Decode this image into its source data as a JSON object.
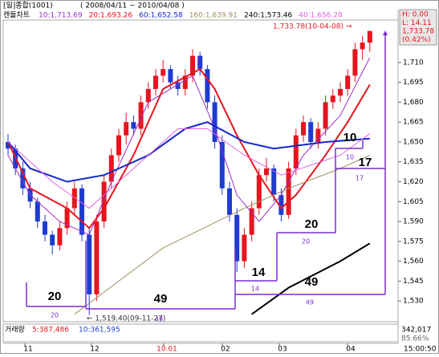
{
  "header": {
    "title": "[일]종합(1001)",
    "period": "( 2008/04/11 ~ 2010/04/08 )"
  },
  "chart_data": {
    "type": "candlestick",
    "chart_label": "캔들차트",
    "candles": [
      [
        1650,
        1656,
        1640,
        1645
      ],
      [
        1645,
        1648,
        1625,
        1630
      ],
      [
        1630,
        1635,
        1610,
        1615
      ],
      [
        1615,
        1620,
        1600,
        1605
      ],
      [
        1605,
        1608,
        1585,
        1590
      ],
      [
        1590,
        1595,
        1575,
        1580
      ],
      [
        1580,
        1583,
        1565,
        1572
      ],
      [
        1572,
        1590,
        1568,
        1585
      ],
      [
        1585,
        1605,
        1580,
        1600
      ],
      [
        1600,
        1620,
        1595,
        1615
      ],
      [
        1615,
        1618,
        1575,
        1580
      ],
      [
        1580,
        1585,
        1519.4,
        1535
      ],
      [
        1535,
        1595,
        1530,
        1590
      ],
      [
        1590,
        1625,
        1585,
        1620
      ],
      [
        1620,
        1645,
        1615,
        1640
      ],
      [
        1640,
        1660,
        1635,
        1655
      ],
      [
        1655,
        1672,
        1648,
        1665
      ],
      [
        1665,
        1670,
        1655,
        1660
      ],
      [
        1660,
        1685,
        1655,
        1680
      ],
      [
        1680,
        1695,
        1675,
        1690
      ],
      [
        1690,
        1705,
        1685,
        1700
      ],
      [
        1700,
        1712,
        1695,
        1705
      ],
      [
        1705,
        1708,
        1690,
        1695
      ],
      [
        1695,
        1700,
        1685,
        1690
      ],
      [
        1690,
        1705,
        1685,
        1700
      ],
      [
        1700,
        1720,
        1695,
        1715
      ],
      [
        1715,
        1718,
        1700,
        1705
      ],
      [
        1705,
        1708,
        1675,
        1680
      ],
      [
        1680,
        1685,
        1645,
        1650
      ],
      [
        1650,
        1655,
        1610,
        1615
      ],
      [
        1615,
        1620,
        1590,
        1595
      ],
      [
        1595,
        1600,
        1552,
        1560
      ],
      [
        1560,
        1585,
        1555,
        1580
      ],
      [
        1580,
        1605,
        1575,
        1600
      ],
      [
        1600,
        1630,
        1595,
        1625
      ],
      [
        1625,
        1638,
        1620,
        1630
      ],
      [
        1630,
        1633,
        1605,
        1610
      ],
      [
        1610,
        1615,
        1590,
        1595
      ],
      [
        1595,
        1635,
        1592,
        1630
      ],
      [
        1630,
        1660,
        1625,
        1655
      ],
      [
        1655,
        1670,
        1650,
        1665
      ],
      [
        1665,
        1668,
        1645,
        1650
      ],
      [
        1650,
        1665,
        1645,
        1660
      ],
      [
        1660,
        1685,
        1655,
        1680
      ],
      [
        1680,
        1690,
        1675,
        1685
      ],
      [
        1685,
        1695,
        1680,
        1690
      ],
      [
        1690,
        1705,
        1685,
        1700
      ],
      [
        1700,
        1725,
        1695,
        1720
      ],
      [
        1720,
        1730,
        1712,
        1725
      ],
      [
        1725,
        1733.78,
        1718,
        1733.78
      ]
    ],
    "up_color": "#e8141e",
    "down_color": "#1e3cd2",
    "series": [
      {
        "name": "10:1,713.69",
        "color": "#9b30c8",
        "width": 1,
        "x": [
          0,
          3,
          7,
          11,
          14,
          19,
          25,
          28,
          31,
          34,
          37,
          40,
          45,
          49
        ],
        "values": [
          1640,
          1610,
          1590,
          1580,
          1620,
          1680,
          1700,
          1660,
          1610,
          1590,
          1610,
          1640,
          1670,
          1713.69
        ]
      },
      {
        "name": "20:1,693.26",
        "color": "#e8141e",
        "width": 2,
        "x": [
          0,
          3,
          8,
          11,
          13,
          17,
          21,
          26,
          28,
          31,
          34,
          37,
          39,
          43,
          46,
          49
        ],
        "values": [
          1650,
          1615,
          1600,
          1585,
          1600,
          1640,
          1690,
          1705,
          1690,
          1655,
          1625,
          1600,
          1610,
          1640,
          1665,
          1693.26
        ]
      },
      {
        "name": "60:1,652.58",
        "color": "#1428c8",
        "width": 2,
        "x": [
          0,
          3,
          8,
          13,
          19,
          24,
          27,
          32,
          36,
          43,
          49
        ],
        "values": [
          1650,
          1630,
          1620,
          1625,
          1640,
          1660,
          1665,
          1650,
          1645,
          1650,
          1652.58
        ]
      },
      {
        "name": "160:1,639.91",
        "color": "#a09060",
        "width": 1,
        "x": [
          9,
          21,
          32,
          38,
          45,
          49
        ],
        "values": [
          1520,
          1570,
          1600,
          1615,
          1630,
          1639.91
        ]
      },
      {
        "name": "240:1,573.46",
        "color": "#000000",
        "width": 2,
        "x": [
          33,
          38,
          45,
          49
        ],
        "values": [
          1520,
          1540,
          1560,
          1573.46
        ]
      },
      {
        "name": "40:1,656.28",
        "color": "#e060e0",
        "width": 1,
        "x": [
          0,
          6,
          11,
          17,
          23,
          27,
          32,
          37,
          45,
          49
        ],
        "values": [
          1650,
          1620,
          1600,
          1630,
          1660,
          1660,
          1640,
          1625,
          1640,
          1656.28
        ]
      }
    ],
    "ylim": [
      1518,
      1742
    ],
    "yticks": [
      {
        "value": 1530,
        "label": "1,530"
      },
      {
        "value": 1545,
        "label": "1,545"
      },
      {
        "value": 1560,
        "label": "1,560"
      },
      {
        "value": 1575,
        "label": "1,575"
      },
      {
        "value": 1590,
        "label": "1,590"
      },
      {
        "value": 1605,
        "label": "1,605"
      },
      {
        "value": 1620,
        "label": "1,620"
      },
      {
        "value": 1635,
        "label": "1,635"
      },
      {
        "value": 1650,
        "label": "1,650"
      },
      {
        "value": 1665,
        "label": "1,665"
      },
      {
        "value": 1680,
        "label": "1,680"
      },
      {
        "value": 1695,
        "label": "1,695"
      },
      {
        "value": 1710,
        "label": "1,710"
      }
    ],
    "x_labels": [
      "11",
      "12",
      "10.01",
      "02",
      "03",
      "04"
    ],
    "annotations": {
      "high": "1,733.78(10-04-08) →",
      "low": "← 1,519.40(09-11-27)"
    },
    "cycles": [
      20,
      49,
      14,
      20,
      10,
      17,
      49
    ],
    "info_box": [
      "H: 0.00",
      "L: 14.11",
      "1,733.78",
      "(0.42%)"
    ]
  },
  "volume_panel": {
    "label": "거래량",
    "ma5": "5:387,486",
    "ma10": "10:361,595",
    "value": "342,017",
    "ratio": "85.66%"
  },
  "clock": "15:00:50"
}
